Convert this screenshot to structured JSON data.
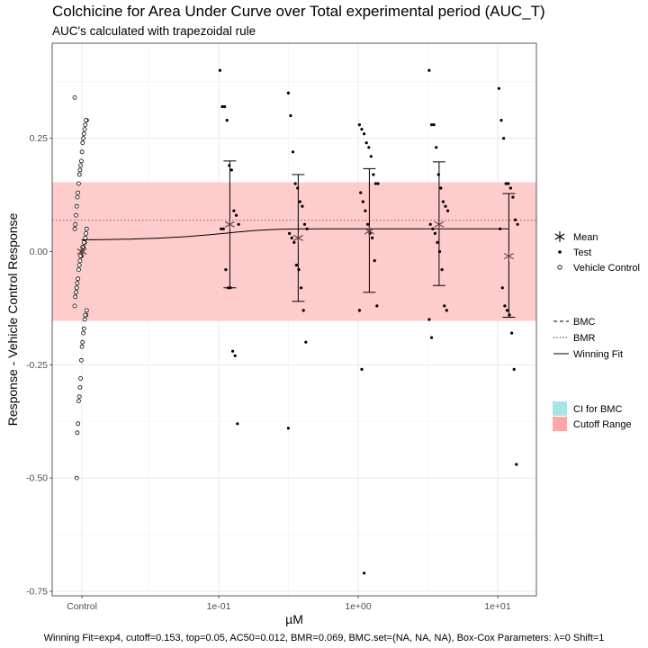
{
  "chart_data": {
    "type": "scatter",
    "title": "Colchicine for Area Under Curve over Total experimental period (AUC_T)",
    "subtitle": "AUC's calculated with trapezoidal rule",
    "xlabel": "µM",
    "ylabel": "Response - Vehicle Control Response",
    "x_tick_labels": [
      "Control",
      "1e-01",
      "1e+00",
      "1e+01"
    ],
    "y_tick_labels": [
      "0.25",
      "0.00",
      "-0.25",
      "-0.50",
      "-0.75"
    ],
    "y_ticks": [
      0.25,
      0.0,
      -0.25,
      -0.5,
      -0.75
    ],
    "ylim": [
      -0.76,
      0.46
    ],
    "x_log_range": [
      -2.0,
      1.25
    ],
    "grid": true,
    "caption": "Winning Fit=exp4, cutoff=0.153, top=0.05, AC50=0.012, BMR=0.069, BMC.set=(NA, NA, NA), Box-Cox Parameters: λ=0 Shift=1",
    "cutoff_range": [
      -0.153,
      0.153
    ],
    "bmr": 0.069,
    "winning_fit": {
      "model": "exp4",
      "top": 0.05,
      "ac50": 0.012,
      "control_value": 0.025
    },
    "legend_shapes": [
      {
        "label": "Mean",
        "symbol": "asterisk"
      },
      {
        "label": "Test",
        "symbol": "dot"
      },
      {
        "label": "Vehicle Control",
        "symbol": "open-circle"
      }
    ],
    "legend_lines": [
      {
        "label": "BMC",
        "style": "dashed"
      },
      {
        "label": "BMR",
        "style": "dotted"
      },
      {
        "label": "Winning Fit",
        "style": "solid"
      }
    ],
    "legend_fills": [
      {
        "label": "CI for BMC",
        "color": "#a6e5e6"
      },
      {
        "label": "Cutoff Range",
        "color": "#fca8a8"
      }
    ],
    "colors": {
      "cutoff_band": "#ffcccc",
      "ci_band": "#a6e5e6",
      "mean_marker": "#5a3a3a",
      "points": "#000000"
    },
    "means": [
      {
        "x": "Control",
        "log_x": null,
        "mean": 0.0,
        "upper": null,
        "lower": null
      },
      {
        "x": "0.12",
        "log_x": -0.92,
        "mean": 0.06,
        "upper": 0.2,
        "lower": -0.08
      },
      {
        "x": "0.37",
        "log_x": -0.43,
        "mean": 0.03,
        "upper": 0.17,
        "lower": -0.11
      },
      {
        "x": "1.2",
        "log_x": 0.08,
        "mean": 0.045,
        "upper": 0.183,
        "lower": -0.09
      },
      {
        "x": "3.7",
        "log_x": 0.58,
        "mean": 0.06,
        "upper": 0.198,
        "lower": -0.075
      },
      {
        "x": "12",
        "log_x": 1.08,
        "mean": -0.01,
        "upper": 0.128,
        "lower": -0.145
      }
    ],
    "test_points": [
      {
        "log_x": -0.92,
        "values": [
          0.4,
          0.32,
          0.32,
          0.29,
          0.19,
          0.18,
          0.09,
          0.08,
          0.06,
          0.05,
          0.05,
          -0.04,
          -0.08,
          -0.08,
          -0.22,
          -0.23,
          -0.38
        ]
      },
      {
        "log_x": -0.43,
        "values": [
          0.35,
          0.3,
          0.22,
          0.15,
          0.14,
          0.11,
          0.1,
          0.06,
          0.05,
          0.04,
          0.03,
          0.02,
          -0.03,
          -0.04,
          -0.08,
          -0.13,
          -0.2,
          -0.39
        ]
      },
      {
        "log_x": 0.08,
        "values": [
          0.28,
          0.27,
          0.26,
          0.24,
          0.23,
          0.21,
          0.17,
          0.15,
          0.15,
          0.13,
          0.11,
          0.09,
          0.06,
          0.04,
          0.03,
          -0.02,
          -0.12,
          -0.13,
          -0.26,
          -0.71
        ]
      },
      {
        "log_x": 0.58,
        "values": [
          0.4,
          0.28,
          0.28,
          0.23,
          0.17,
          0.14,
          0.11,
          0.1,
          0.09,
          0.06,
          0.05,
          0.04,
          0.02,
          0.0,
          -0.04,
          -0.12,
          -0.13,
          -0.15,
          -0.19
        ]
      },
      {
        "log_x": 1.08,
        "values": [
          0.36,
          0.29,
          0.25,
          0.15,
          0.15,
          0.14,
          0.12,
          0.07,
          0.06,
          0.05,
          -0.08,
          -0.12,
          -0.13,
          -0.14,
          -0.18,
          -0.26,
          -0.47
        ]
      }
    ],
    "vehicle_control": [
      0.34,
      0.29,
      0.29,
      0.28,
      0.27,
      0.26,
      0.25,
      0.24,
      0.22,
      0.2,
      0.19,
      0.18,
      0.17,
      0.15,
      0.13,
      0.12,
      0.1,
      0.08,
      0.06,
      0.05,
      0.05,
      0.04,
      0.03,
      0.02,
      0.02,
      0.01,
      0.01,
      0.0,
      -0.01,
      -0.01,
      -0.02,
      -0.03,
      -0.04,
      -0.06,
      -0.07,
      -0.08,
      -0.09,
      -0.1,
      -0.12,
      -0.13,
      -0.14,
      -0.14,
      -0.15,
      -0.17,
      -0.18,
      -0.2,
      -0.21,
      -0.24,
      -0.28,
      -0.3,
      -0.32,
      -0.33,
      -0.38,
      -0.4,
      -0.5
    ]
  }
}
